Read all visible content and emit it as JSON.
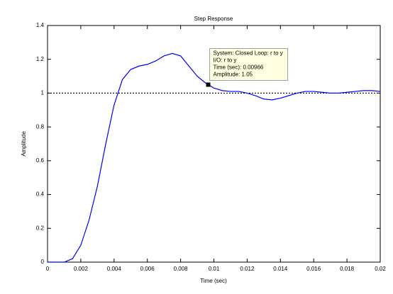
{
  "chart_data": {
    "type": "line",
    "title": "Step Response",
    "x_label": "Time (sec)",
    "y_label": "Amplitude",
    "x": [
      0,
      0.001,
      0.0015,
      0.002,
      0.0025,
      0.003,
      0.0035,
      0.004,
      0.0045,
      0.005,
      0.0055,
      0.006,
      0.0065,
      0.007,
      0.0075,
      0.008,
      0.0085,
      0.009,
      0.0095,
      0.00966,
      0.01,
      0.0105,
      0.011,
      0.0115,
      0.012,
      0.0125,
      0.013,
      0.0135,
      0.014,
      0.0145,
      0.015,
      0.0155,
      0.016,
      0.0165,
      0.017,
      0.0175,
      0.018,
      0.0185,
      0.019,
      0.0195,
      0.02
    ],
    "series": [
      {
        "color": "#0000ff",
        "values": [
          0,
          0,
          0.02,
          0.1,
          0.25,
          0.45,
          0.7,
          0.93,
          1.08,
          1.14,
          1.16,
          1.17,
          1.19,
          1.22,
          1.235,
          1.22,
          1.16,
          1.1,
          1.06,
          1.05,
          1.03,
          1.015,
          1.01,
          1.01,
          1.0,
          0.985,
          0.965,
          0.96,
          0.97,
          0.985,
          1.0,
          1.01,
          1.01,
          1.005,
          1.0,
          1.0,
          1.005,
          1.01,
          1.015,
          1.015,
          1.01
        ]
      }
    ],
    "xlim": [
      0,
      0.02
    ],
    "xticks": [
      0,
      0.002,
      0.004,
      0.006,
      0.008,
      0.01,
      0.012,
      0.014,
      0.016,
      0.018,
      0.02
    ],
    "ylim": [
      0,
      1.4
    ],
    "yticks": [
      0,
      0.2,
      0.4,
      0.6,
      0.8,
      1,
      1.2,
      1.4
    ],
    "reference_line": {
      "y": 1,
      "style": "dotted",
      "color": "#000000"
    },
    "datatip": {
      "x": 0.00966,
      "y": 1.05,
      "lines": [
        "System: Closed Loop: r to y",
        "I/O: r to y",
        "Time (sec): 0.00966",
        "Amplitude: 1.05"
      ]
    }
  }
}
